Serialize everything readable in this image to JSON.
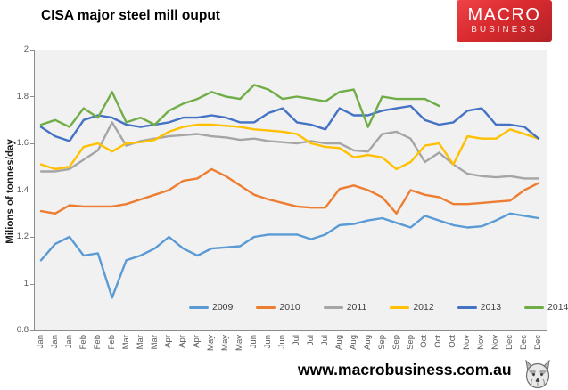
{
  "header": {
    "logo_line1": "MACRO",
    "logo_line2": "BUSINESS",
    "logo_color": "#d92b2f"
  },
  "footer": {
    "website": "www.macrobusiness.com.au"
  },
  "chart_data": {
    "type": "line",
    "title": "CISA major steel mill ouput",
    "xlabel": "",
    "ylabel": "Milions of tonnes/day",
    "ylim": [
      0.8,
      2
    ],
    "yticks": [
      2,
      1.8,
      1.6,
      1.4,
      1.2,
      1,
      0.8
    ],
    "grid": false,
    "plot_bg": "#f1f1f1",
    "axis_color": "#8c8c8c",
    "legend_position": "bottom-inside",
    "categories": [
      "Jan",
      "Jan",
      "Jan",
      "Feb",
      "Feb",
      "Feb",
      "Mar",
      "Mar",
      "Mar",
      "Apr",
      "Apr",
      "Apr",
      "May",
      "May",
      "May",
      "Jun",
      "Jun",
      "Jun",
      "Jul",
      "Jul",
      "Jul",
      "Aug",
      "Aug",
      "Aug",
      "Sep",
      "Sep",
      "Sep",
      "Oct",
      "Oct",
      "Oct",
      "Nov",
      "Nov",
      "Nov",
      "Dec",
      "Dec",
      "Dec"
    ],
    "series": [
      {
        "name": "2009",
        "color": "#5B9BD5",
        "values": [
          1.1,
          1.17,
          1.2,
          1.12,
          1.13,
          0.94,
          1.1,
          1.12,
          1.15,
          1.2,
          1.15,
          1.12,
          1.15,
          1.155,
          1.16,
          1.2,
          1.21,
          1.21,
          1.21,
          1.19,
          1.21,
          1.25,
          1.255,
          1.27,
          1.28,
          1.26,
          1.24,
          1.29,
          1.27,
          1.25,
          1.24,
          1.245,
          1.27,
          1.3,
          1.29,
          1.28
        ]
      },
      {
        "name": "2010",
        "color": "#ED7D31",
        "values": [
          1.31,
          1.3,
          1.335,
          1.33,
          1.33,
          1.33,
          1.34,
          1.36,
          1.38,
          1.4,
          1.44,
          1.45,
          1.49,
          1.46,
          1.42,
          1.38,
          1.36,
          1.345,
          1.33,
          1.325,
          1.325,
          1.405,
          1.42,
          1.4,
          1.37,
          1.3,
          1.4,
          1.38,
          1.37,
          1.34,
          1.34,
          1.345,
          1.35,
          1.355,
          1.4,
          1.43
        ]
      },
      {
        "name": "2011",
        "color": "#A5A5A5",
        "values": [
          1.48,
          1.48,
          1.49,
          1.53,
          1.57,
          1.69,
          1.59,
          1.61,
          1.62,
          1.63,
          1.635,
          1.64,
          1.63,
          1.625,
          1.615,
          1.62,
          1.61,
          1.605,
          1.6,
          1.61,
          1.6,
          1.6,
          1.57,
          1.565,
          1.64,
          1.65,
          1.62,
          1.52,
          1.56,
          1.51,
          1.47,
          1.46,
          1.455,
          1.46,
          1.45,
          1.45
        ]
      },
      {
        "name": "2012",
        "color": "#FFC000",
        "values": [
          1.51,
          1.49,
          1.5,
          1.585,
          1.6,
          1.565,
          1.6,
          1.605,
          1.615,
          1.65,
          1.67,
          1.68,
          1.68,
          1.675,
          1.67,
          1.66,
          1.655,
          1.65,
          1.64,
          1.6,
          1.585,
          1.58,
          1.54,
          1.55,
          1.54,
          1.49,
          1.52,
          1.59,
          1.6,
          1.51,
          1.63,
          1.62,
          1.62,
          1.66,
          1.64,
          1.62
        ]
      },
      {
        "name": "2013",
        "color": "#4472C4",
        "values": [
          1.67,
          1.63,
          1.61,
          1.7,
          1.72,
          1.71,
          1.68,
          1.67,
          1.68,
          1.69,
          1.71,
          1.71,
          1.72,
          1.71,
          1.69,
          1.69,
          1.73,
          1.75,
          1.69,
          1.68,
          1.66,
          1.75,
          1.72,
          1.72,
          1.74,
          1.75,
          1.76,
          1.7,
          1.68,
          1.69,
          1.74,
          1.75,
          1.68,
          1.68,
          1.67,
          1.62
        ]
      },
      {
        "name": "2014",
        "color": "#70AD47",
        "values": [
          1.68,
          1.7,
          1.67,
          1.75,
          1.71,
          1.82,
          1.69,
          1.71,
          1.68,
          1.74,
          1.77,
          1.79,
          1.82,
          1.8,
          1.79,
          1.85,
          1.83,
          1.79,
          1.8,
          1.79,
          1.78,
          1.82,
          1.83,
          1.67,
          1.8,
          1.79,
          1.79,
          1.79,
          1.76
        ]
      }
    ]
  }
}
